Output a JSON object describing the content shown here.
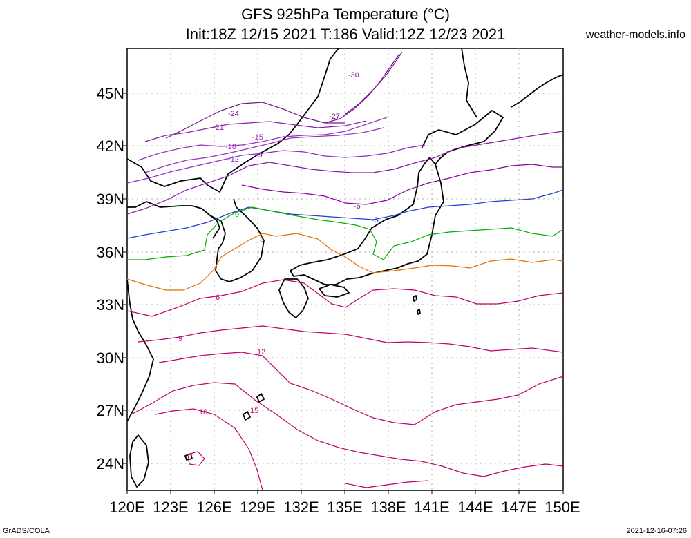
{
  "title_line1": "GFS 925hPa Temperature (°C)",
  "title_line2": "Init:18Z 12/15 2021 T:186 Valid:12Z 12/23 2021",
  "site": "weather-models.info",
  "credit_left": "GrADS/COLA",
  "credit_right": "2021-12-16-07:26",
  "lat_labels": [
    "45N",
    "42N",
    "39N",
    "36N",
    "33N",
    "30N",
    "27N",
    "24N"
  ],
  "lon_labels": [
    "120E",
    "123E",
    "126E",
    "129E",
    "132E",
    "135E",
    "138E",
    "141E",
    "144E",
    "147E",
    "150E"
  ],
  "contour_colors": {
    "-30": "#7a1090",
    "-27": "#7a1090",
    "-24": "#7a1090",
    "-21": "#8a1fa8",
    "-18": "#9b30c0",
    "-15": "#9b30c0",
    "-12": "#8c2cc4",
    "-9": "#9010b0",
    "-6": "#8a00a0",
    "-3": "#1f3fd0",
    "0": "#00b000",
    "3": "#e07000",
    "6": "#c0006a",
    "9": "#c0006a",
    "12": "#c0006a",
    "15": "#c0006a",
    "18": "#c0006a"
  },
  "contour_labels": [
    "-30",
    "-27",
    "-24",
    "-21",
    "-18",
    "-15",
    "-12",
    "-9",
    "-6",
    "-3",
    "0",
    "3",
    "6",
    "9",
    "12",
    "15",
    "18"
  ]
}
